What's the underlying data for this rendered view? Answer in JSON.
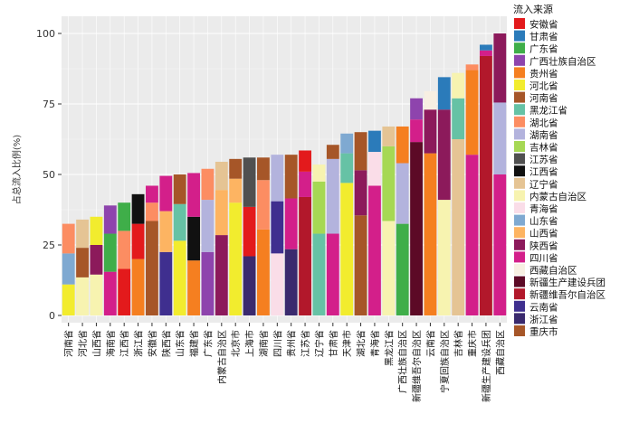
{
  "chart_data": {
    "type": "stacked-bar",
    "ylabel": "占总流入比例(%)",
    "ylim": [
      0,
      105
    ],
    "yticks": [
      0,
      25,
      50,
      75,
      100
    ],
    "legend_title": "流入来源",
    "provinces": [
      {
        "name": "安徽省",
        "color": "#e31a1c"
      },
      {
        "name": "甘肃省",
        "color": "#2b7bba"
      },
      {
        "name": "广东省",
        "color": "#3fae49"
      },
      {
        "name": "广西壮族自治区",
        "color": "#8e44ad"
      },
      {
        "name": "贵州省",
        "color": "#f57f20"
      },
      {
        "name": "河北省",
        "color": "#f2ec2e"
      },
      {
        "name": "河南省",
        "color": "#a65628"
      },
      {
        "name": "黑龙江省",
        "color": "#66c2a5"
      },
      {
        "name": "湖北省",
        "color": "#fc8d62"
      },
      {
        "name": "湖南省",
        "color": "#b3b3dd"
      },
      {
        "name": "吉林省",
        "color": "#a6d854"
      },
      {
        "name": "江苏省",
        "color": "#505050"
      },
      {
        "name": "江西省",
        "color": "#111111"
      },
      {
        "name": "辽宁省",
        "color": "#e5c494"
      },
      {
        "name": "内蒙古自治区",
        "color": "#f7f3b0"
      },
      {
        "name": "青海省",
        "color": "#fadde8"
      },
      {
        "name": "山东省",
        "color": "#7fa9d1"
      },
      {
        "name": "山西省",
        "color": "#fdb462"
      },
      {
        "name": "陕西省",
        "color": "#8c1a5b"
      },
      {
        "name": "四川省",
        "color": "#d31f8a"
      },
      {
        "name": "西藏自治区",
        "color": "#f7efe2"
      },
      {
        "name": "新疆生产建设兵团",
        "color": "#5c0a26"
      },
      {
        "name": "新疆维吾尔自治区",
        "color": "#b2182b"
      },
      {
        "name": "云南省",
        "color": "#3f2f8f"
      },
      {
        "name": "浙江省",
        "color": "#3a2a6e"
      },
      {
        "name": "重庆市",
        "color": "#a65628"
      }
    ],
    "bars": [
      {
        "name": "河南省",
        "segments": [
          [
            "河北省",
            11
          ],
          [
            "山东省",
            11
          ],
          [
            "湖北省",
            10.5
          ]
        ]
      },
      {
        "name": "河北省",
        "segments": [
          [
            "内蒙古自治区",
            13.5
          ],
          [
            "重庆市",
            10.5
          ],
          [
            "辽宁省",
            10
          ]
        ]
      },
      {
        "name": "山西省",
        "segments": [
          [
            "内蒙古自治区",
            14.5
          ],
          [
            "陕西省",
            10.5
          ],
          [
            "河北省",
            10
          ]
        ]
      },
      {
        "name": "海南省",
        "segments": [
          [
            "四川省",
            15.5
          ],
          [
            "广东省",
            13.5
          ],
          [
            "广西壮族自治区",
            10
          ]
        ]
      },
      {
        "name": "江西省",
        "segments": [
          [
            "安徽省",
            16.5
          ],
          [
            "湖北省",
            13.5
          ],
          [
            "广东省",
            10
          ]
        ]
      },
      {
        "name": "浙江省",
        "segments": [
          [
            "贵州省",
            20
          ],
          [
            "安徽省",
            12.5
          ],
          [
            "江西省",
            10.5
          ]
        ]
      },
      {
        "name": "安徽省",
        "segments": [
          [
            "重庆市",
            33.5
          ],
          [
            "湖北省",
            6.5
          ],
          [
            "四川省",
            6
          ]
        ]
      },
      {
        "name": "陕西省",
        "segments": [
          [
            "云南省",
            22.5
          ],
          [
            "山西省",
            14.5
          ],
          [
            "四川省",
            12.5
          ]
        ]
      },
      {
        "name": "山东省",
        "segments": [
          [
            "河北省",
            26.5
          ],
          [
            "黑龙江省",
            13
          ],
          [
            "河南省",
            10.5
          ]
        ]
      },
      {
        "name": "福建省",
        "segments": [
          [
            "贵州省",
            19.5
          ],
          [
            "江西省",
            15.5
          ],
          [
            "四川省",
            15.5
          ]
        ]
      },
      {
        "name": "广东省",
        "segments": [
          [
            "广西壮族自治区",
            22.5
          ],
          [
            "湖南省",
            18.5
          ],
          [
            "湖北省",
            11
          ]
        ]
      },
      {
        "name": "内蒙古自治区",
        "segments": [
          [
            "陕西省",
            28.5
          ],
          [
            "山西省",
            16
          ],
          [
            "辽宁省",
            10
          ]
        ]
      },
      {
        "name": "北京市",
        "segments": [
          [
            "河北省",
            40
          ],
          [
            "山西省",
            8.5
          ],
          [
            "河南省",
            7
          ]
        ]
      },
      {
        "name": "上海市",
        "segments": [
          [
            "浙江省",
            21
          ],
          [
            "安徽省",
            17.5
          ],
          [
            "江苏省",
            17.5
          ]
        ]
      },
      {
        "name": "湖南省",
        "segments": [
          [
            "贵州省",
            30.5
          ],
          [
            "湖北省",
            17.5
          ],
          [
            "重庆市",
            8
          ]
        ]
      },
      {
        "name": "四川省",
        "segments": [
          [
            "青海省",
            22
          ],
          [
            "云南省",
            18.5
          ],
          [
            "湖南省",
            16.5
          ]
        ]
      },
      {
        "name": "贵州省",
        "segments": [
          [
            "浙江省",
            23.5
          ],
          [
            "四川省",
            18
          ],
          [
            "重庆市",
            15.5
          ]
        ]
      },
      {
        "name": "江苏省",
        "segments": [
          [
            "新疆维吾尔自治区",
            42
          ],
          [
            "四川省",
            9
          ],
          [
            "安徽省",
            7.5
          ]
        ]
      },
      {
        "name": "辽宁省",
        "segments": [
          [
            "黑龙江省",
            29
          ],
          [
            "吉林省",
            18.5
          ],
          [
            "内蒙古自治区",
            6
          ]
        ]
      },
      {
        "name": "甘肃省",
        "segments": [
          [
            "四川省",
            29
          ],
          [
            "湖南省",
            26.5
          ],
          [
            "重庆市",
            5
          ]
        ]
      },
      {
        "name": "天津市",
        "segments": [
          [
            "河北省",
            47
          ],
          [
            "黑龙江省",
            10.5
          ],
          [
            "山东省",
            7
          ]
        ]
      },
      {
        "name": "湖北省",
        "segments": [
          [
            "重庆市",
            35.5
          ],
          [
            "陕西省",
            16
          ],
          [
            "河南省",
            13.5
          ]
        ]
      },
      {
        "name": "青海省",
        "segments": [
          [
            "四川省",
            46
          ],
          [
            "青海省",
            12
          ],
          [
            "甘肃省",
            7.5
          ]
        ]
      },
      {
        "name": "黑龙江省",
        "segments": [
          [
            "内蒙古自治区",
            33.5
          ],
          [
            "吉林省",
            26.5
          ],
          [
            "辽宁省",
            7
          ]
        ]
      },
      {
        "name": "广西壮族自治区",
        "segments": [
          [
            "广东省",
            32.5
          ],
          [
            "湖南省",
            21.5
          ],
          [
            "贵州省",
            13
          ]
        ]
      },
      {
        "name": "新疆维吾尔自治区",
        "segments": [
          [
            "新疆生产建设兵团",
            61.5
          ],
          [
            "四川省",
            8
          ],
          [
            "广西壮族自治区",
            7.5
          ]
        ]
      },
      {
        "name": "云南省",
        "segments": [
          [
            "贵州省",
            57.5
          ],
          [
            "陕西省",
            15.5
          ],
          [
            "西藏自治区",
            6.5
          ]
        ]
      },
      {
        "name": "宁夏回族自治区",
        "segments": [
          [
            "内蒙古自治区",
            41
          ],
          [
            "陕西省",
            32
          ],
          [
            "甘肃省",
            11.5
          ]
        ]
      },
      {
        "name": "吉林省",
        "segments": [
          [
            "辽宁省",
            62.5
          ],
          [
            "黑龙江省",
            14.5
          ],
          [
            "内蒙古自治区",
            9
          ]
        ]
      },
      {
        "name": "重庆市",
        "segments": [
          [
            "四川省",
            57
          ],
          [
            "贵州省",
            30
          ],
          [
            "湖北省",
            2
          ]
        ]
      },
      {
        "name": "新疆生产建设兵团",
        "segments": [
          [
            "新疆维吾尔自治区",
            92
          ],
          [
            "四川省",
            2
          ],
          [
            "甘肃省",
            2
          ]
        ]
      },
      {
        "name": "西藏自治区",
        "segments": [
          [
            "四川省",
            50
          ],
          [
            "湖南省",
            25.5
          ],
          [
            "陕西省",
            24.5
          ]
        ]
      }
    ]
  }
}
